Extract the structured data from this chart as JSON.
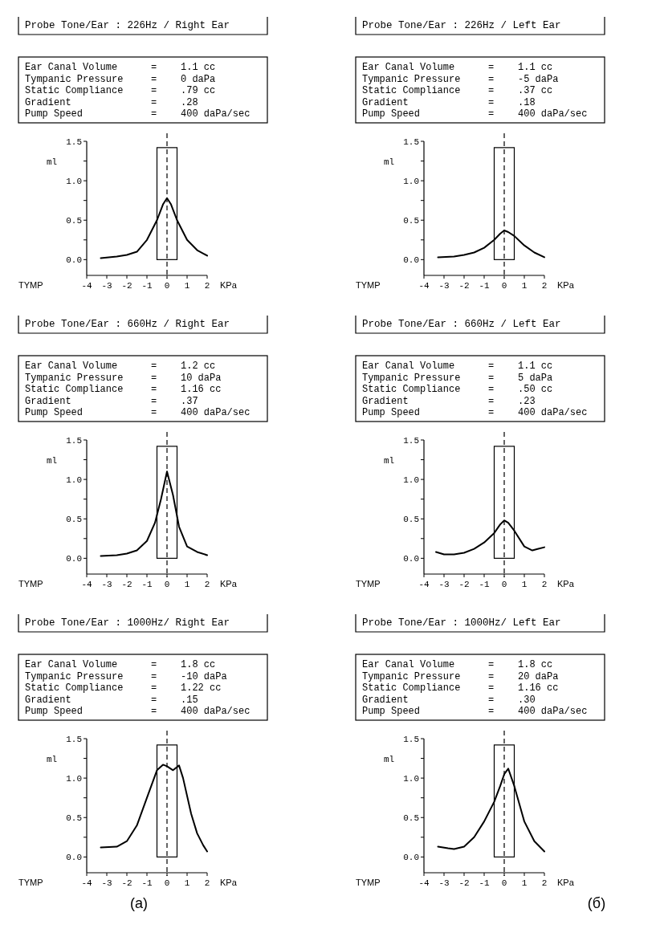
{
  "chart_data": [
    {
      "type": "line",
      "title": "Probe Tone/Ear : 226Hz / Right Ear",
      "xlabel": "KPa",
      "ylabel": "ml",
      "annotations": [
        "Ear Canal Volume = 1.1 cc",
        "Tympanic Pressure = 0 daPa",
        "Static Compliance = .79 cc",
        "Gradient = .28",
        "Pump Speed = 400 daPa/sec",
        "TYMP"
      ],
      "xlim": [
        -4,
        2
      ],
      "xticks": [
        -4,
        -3,
        -2,
        -1,
        0,
        1,
        2
      ],
      "ylim": [
        -0.2,
        1.5
      ],
      "yticks": [
        {
          "value": 0,
          "label": "0.0"
        },
        {
          "value": 0.25,
          "label": null
        },
        {
          "value": 0.5,
          "label": "0.5"
        },
        {
          "value": 0.75,
          "label": null
        },
        {
          "value": 1,
          "label": "1.0"
        },
        {
          "value": 1.25,
          "label": null
        },
        {
          "value": 1.5,
          "label": "1.5"
        }
      ],
      "ref_lines": [
        {
          "axis": "x",
          "value": 0,
          "line_style": "dashed",
          "color": "#000000"
        }
      ],
      "series": [
        {
          "type": "bar",
          "color": "#000000",
          "x": [
            0
          ],
          "values": [
            1.42
          ]
        },
        {
          "color": "#000000",
          "x": [
            -3.3,
            -2.5,
            -2,
            -1.5,
            -1,
            -0.5,
            -0.2,
            0,
            0.2,
            0.5,
            1,
            1.5,
            2
          ],
          "values": [
            0.02,
            0.04,
            0.06,
            0.1,
            0.25,
            0.5,
            0.7,
            0.78,
            0.7,
            0.5,
            0.25,
            0.12,
            0.05
          ]
        }
      ]
    },
    {
      "type": "line",
      "title": "Probe Tone/Ear : 226Hz / Left Ear",
      "xlabel": "KPa",
      "ylabel": "ml",
      "annotations": [
        "Ear Canal Volume = 1.1 cc",
        "Tympanic Pressure = -5 daPa",
        "Static Compliance = .37 cc",
        "Gradient = .18",
        "Pump Speed = 400 daPa/sec",
        "TYMP"
      ],
      "xlim": [
        -4,
        2
      ],
      "xticks": [
        -4,
        -3,
        -2,
        -1,
        0,
        1,
        2
      ],
      "ylim": [
        -0.2,
        1.5
      ],
      "yticks": [
        {
          "value": 0,
          "label": "0.0"
        },
        {
          "value": 0.25,
          "label": null
        },
        {
          "value": 0.5,
          "label": "0.5"
        },
        {
          "value": 0.75,
          "label": null
        },
        {
          "value": 1,
          "label": "1.0"
        },
        {
          "value": 1.25,
          "label": null
        },
        {
          "value": 1.5,
          "label": "1.5"
        }
      ],
      "ref_lines": [
        {
          "axis": "x",
          "value": 0,
          "line_style": "dashed",
          "color": "#000000"
        }
      ],
      "series": [
        {
          "type": "bar",
          "color": "#000000",
          "x": [
            0
          ],
          "values": [
            1.42
          ]
        },
        {
          "color": "#000000",
          "x": [
            -3.3,
            -2.5,
            -2,
            -1.5,
            -1,
            -0.5,
            -0.2,
            0,
            0.2,
            0.5,
            1,
            1.5,
            2
          ],
          "values": [
            0.03,
            0.04,
            0.06,
            0.09,
            0.15,
            0.25,
            0.33,
            0.37,
            0.35,
            0.3,
            0.18,
            0.09,
            0.03
          ]
        }
      ]
    },
    {
      "type": "line",
      "title": "Probe Tone/Ear : 660Hz / Right Ear",
      "xlabel": "KPa",
      "ylabel": "ml",
      "annotations": [
        "Ear Canal Volume = 1.2 cc",
        "Tympanic Pressure = 10 daPa",
        "Static Compliance = 1.16 cc",
        "Gradient = .37",
        "Pump Speed = 400 daPa/sec",
        "TYMP"
      ],
      "xlim": [
        -4,
        2
      ],
      "xticks": [
        -4,
        -3,
        -2,
        -1,
        0,
        1,
        2
      ],
      "ylim": [
        -0.2,
        1.5
      ],
      "yticks": [
        {
          "value": 0,
          "label": "0.0"
        },
        {
          "value": 0.25,
          "label": null
        },
        {
          "value": 0.5,
          "label": "0.5"
        },
        {
          "value": 0.75,
          "label": null
        },
        {
          "value": 1,
          "label": "1.0"
        },
        {
          "value": 1.25,
          "label": null
        },
        {
          "value": 1.5,
          "label": "1.5"
        }
      ],
      "ref_lines": [
        {
          "axis": "x",
          "value": 0,
          "line_style": "dashed",
          "color": "#000000"
        }
      ],
      "series": [
        {
          "type": "bar",
          "color": "#000000",
          "x": [
            0
          ],
          "values": [
            1.42
          ]
        },
        {
          "color": "#000000",
          "x": [
            -3.3,
            -2.5,
            -2,
            -1.5,
            -1,
            -0.6,
            -0.3,
            0,
            0.3,
            0.6,
            1,
            1.5,
            2
          ],
          "values": [
            0.03,
            0.04,
            0.06,
            0.1,
            0.22,
            0.45,
            0.75,
            1.1,
            0.8,
            0.4,
            0.15,
            0.08,
            0.04
          ]
        }
      ]
    },
    {
      "type": "line",
      "title": "Probe Tone/Ear : 660Hz / Left Ear",
      "xlabel": "KPa",
      "ylabel": "ml",
      "annotations": [
        "Ear Canal Volume = 1.1 cc",
        "Tympanic Pressure = 5 daPa",
        "Static Compliance = .50 cc",
        "Gradient = .23",
        "Pump Speed = 400 daPa/sec",
        "TYMP"
      ],
      "xlim": [
        -4,
        2
      ],
      "xticks": [
        -4,
        -3,
        -2,
        -1,
        0,
        1,
        2
      ],
      "ylim": [
        -0.2,
        1.5
      ],
      "yticks": [
        {
          "value": 0,
          "label": "0.0"
        },
        {
          "value": 0.25,
          "label": null
        },
        {
          "value": 0.5,
          "label": "0.5"
        },
        {
          "value": 0.75,
          "label": null
        },
        {
          "value": 1,
          "label": "1.0"
        },
        {
          "value": 1.25,
          "label": null
        },
        {
          "value": 1.5,
          "label": "1.5"
        }
      ],
      "ref_lines": [
        {
          "axis": "x",
          "value": 0,
          "line_style": "dashed",
          "color": "#000000"
        }
      ],
      "series": [
        {
          "type": "bar",
          "color": "#000000",
          "x": [
            0
          ],
          "values": [
            1.42
          ]
        },
        {
          "color": "#000000",
          "x": [
            -3.4,
            -3,
            -2.5,
            -2,
            -1.5,
            -1,
            -0.5,
            -0.2,
            0,
            0.2,
            0.5,
            1,
            1.4,
            1.7,
            2
          ],
          "values": [
            0.08,
            0.05,
            0.05,
            0.07,
            0.12,
            0.2,
            0.32,
            0.43,
            0.48,
            0.45,
            0.35,
            0.15,
            0.1,
            0.12,
            0.14
          ]
        }
      ]
    },
    {
      "type": "line",
      "title": "Probe Tone/Ear : 1000Hz/ Right Ear",
      "xlabel": "KPa",
      "ylabel": "ml",
      "annotations": [
        "Ear Canal Volume = 1.8 cc",
        "Tympanic Pressure = -10 daPa",
        "Static Compliance = 1.22 cc",
        "Gradient = .15",
        "Pump Speed = 400 daPa/sec",
        "TYMP",
        "(a)"
      ],
      "xlim": [
        -4,
        2
      ],
      "xticks": [
        -4,
        -3,
        -2,
        -1,
        0,
        1,
        2
      ],
      "ylim": [
        -0.2,
        1.5
      ],
      "yticks": [
        {
          "value": 0,
          "label": "0.0"
        },
        {
          "value": 0.25,
          "label": null
        },
        {
          "value": 0.5,
          "label": "0.5"
        },
        {
          "value": 0.75,
          "label": null
        },
        {
          "value": 1,
          "label": "1.0"
        },
        {
          "value": 1.25,
          "label": null
        },
        {
          "value": 1.5,
          "label": "1.5"
        }
      ],
      "ref_lines": [
        {
          "axis": "x",
          "value": 0,
          "line_style": "dashed",
          "color": "#000000"
        }
      ],
      "series": [
        {
          "type": "bar",
          "color": "#000000",
          "x": [
            0
          ],
          "values": [
            1.42
          ]
        },
        {
          "color": "#000000",
          "x": [
            -3.3,
            -2.5,
            -2,
            -1.5,
            -1,
            -0.5,
            -0.2,
            0,
            0.3,
            0.6,
            0.8,
            1.2,
            1.5,
            1.8,
            2
          ],
          "values": [
            0.12,
            0.13,
            0.2,
            0.4,
            0.75,
            1.1,
            1.17,
            1.15,
            1.1,
            1.16,
            1.0,
            0.55,
            0.3,
            0.15,
            0.07
          ]
        }
      ]
    },
    {
      "type": "line",
      "title": "Probe Tone/Ear : 1000Hz/ Left Ear",
      "xlabel": "KPa",
      "ylabel": "ml",
      "annotations": [
        "Ear Canal Volume = 1.8 cc",
        "Tympanic Pressure = 20 daPa",
        "Static Compliance = 1.16 cc",
        "Gradient = .30",
        "Pump Speed = 400 daPa/sec",
        "TYMP",
        "(б)"
      ],
      "xlim": [
        -4,
        2
      ],
      "xticks": [
        -4,
        -3,
        -2,
        -1,
        0,
        1,
        2
      ],
      "ylim": [
        -0.2,
        1.5
      ],
      "yticks": [
        {
          "value": 0,
          "label": "0.0"
        },
        {
          "value": 0.25,
          "label": null
        },
        {
          "value": 0.5,
          "label": "0.5"
        },
        {
          "value": 0.75,
          "label": null
        },
        {
          "value": 1,
          "label": "1.0"
        },
        {
          "value": 1.25,
          "label": null
        },
        {
          "value": 1.5,
          "label": "1.5"
        }
      ],
      "ref_lines": [
        {
          "axis": "x",
          "value": 0,
          "line_style": "dashed",
          "color": "#000000"
        }
      ],
      "series": [
        {
          "type": "bar",
          "color": "#000000",
          "x": [
            0
          ],
          "values": [
            1.42
          ]
        },
        {
          "color": "#000000",
          "x": [
            -3.3,
            -2.8,
            -2.5,
            -2,
            -1.5,
            -1,
            -0.5,
            -0.2,
            0,
            0.2,
            0.5,
            1,
            1.5,
            2
          ],
          "values": [
            0.13,
            0.11,
            0.1,
            0.13,
            0.25,
            0.45,
            0.7,
            0.9,
            1.05,
            1.12,
            0.9,
            0.45,
            0.2,
            0.07
          ]
        }
      ]
    }
  ]
}
